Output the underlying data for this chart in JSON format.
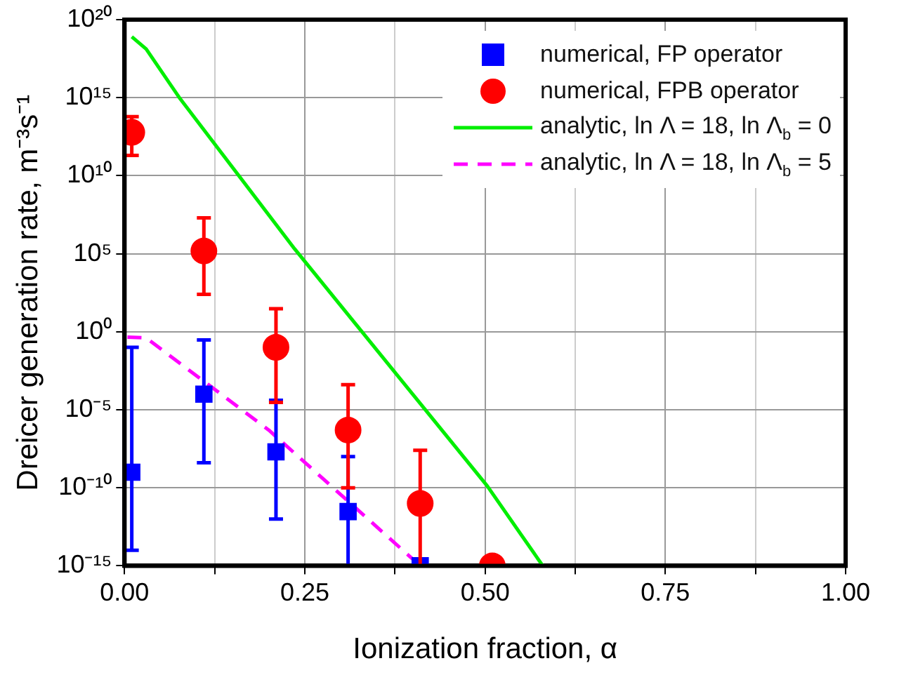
{
  "chart_data": {
    "type": "scatter",
    "xlabel": "Ionization fraction, α",
    "ylabel": "Dreicer generation rate, m⁻³s⁻¹",
    "log": "y",
    "grid": true,
    "legend": "top right",
    "xlim": [
      0,
      1
    ],
    "ylim": [
      1e-15,
      1e+20
    ],
    "xticks": [
      {
        "value": 0,
        "label": "0.00"
      },
      {
        "value": 0.125,
        "label": null
      },
      {
        "value": 0.25,
        "label": "0.25"
      },
      {
        "value": 0.375,
        "label": null
      },
      {
        "value": 0.5,
        "label": "0.50"
      },
      {
        "value": 0.625,
        "label": null
      },
      {
        "value": 0.75,
        "label": "0.75"
      },
      {
        "value": 0.875,
        "label": null
      },
      {
        "value": 1,
        "label": "1.00"
      }
    ],
    "yticks": [
      {
        "value": 1e-15,
        "label": "10⁻¹⁵"
      },
      {
        "value": 1e-10,
        "label": "10⁻¹⁰"
      },
      {
        "value": 1e-05,
        "label": "10⁻⁵"
      },
      {
        "value": 1,
        "label": "10⁰"
      },
      {
        "value": 100000.0,
        "label": "10⁵"
      },
      {
        "value": 10000000000.0,
        "label": "10¹⁰"
      },
      {
        "value": 1000000000000000.0,
        "label": "10¹⁵"
      },
      {
        "value": 1e+20,
        "label": "10²⁰"
      }
    ],
    "series": [
      {
        "name": "numerical, FP operator",
        "type": "scatter",
        "marker": "square",
        "color": "#0000ff",
        "x": [
          0.01,
          0.11,
          0.21,
          0.31,
          0.41
        ],
        "values": [
          1e-09,
          0.0001,
          2e-08,
          3e-12,
          1e-15
        ],
        "errors": [
          [
            1e-14,
            0.1
          ],
          [
            4e-09,
            0.3
          ],
          [
            1e-12,
            4e-05
          ],
          [
            1e-15,
            1e-08
          ],
          null
        ]
      },
      {
        "name": "numerical, FPB operator",
        "type": "scatter",
        "marker": "circle",
        "color": "#ff0000",
        "x": [
          0.01,
          0.11,
          0.21,
          0.31,
          0.41,
          0.51
        ],
        "values": [
          6000000000000.0,
          150000.0,
          0.1,
          5e-07,
          1e-11,
          1e-15
        ],
        "errors": [
          [
            200000000000.0,
            60000000000000.0
          ],
          [
            250.0,
            20000000.0
          ],
          [
            3e-05,
            30
          ],
          [
            1e-10,
            0.0004
          ],
          [
            1e-15,
            2.5e-08
          ],
          null
        ]
      },
      {
        "name": "analytic, ln Λ = 18, ln Λ$_{b}$ = 0",
        "type": "line",
        "line_style": "solid",
        "color": "#00ee00",
        "x": [
          0.01,
          0.03,
          0.076,
          0.236,
          0.503,
          0.58
        ],
        "values": [
          8e+18,
          1.3e+18,
          1000000000000000.0,
          200000.0,
          1.3e-10,
          1e-15
        ]
      },
      {
        "name": "analytic, ln Λ = 18, ln Λ$_{b}$ = 5",
        "type": "line",
        "line_style": "dashed",
        "color": "#ff00ff",
        "x": [
          0.004,
          0.03,
          0.2,
          0.41
        ],
        "values": [
          0.45,
          0.4,
          5e-07,
          1e-15
        ]
      }
    ]
  }
}
